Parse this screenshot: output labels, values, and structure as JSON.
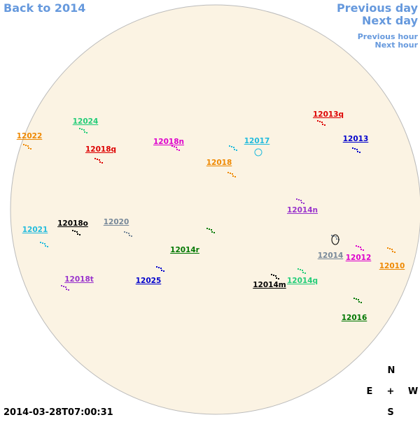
{
  "nav": {
    "back": "Back to 2014",
    "previous_day": "Previous day",
    "next_day": "Next day",
    "previous_hour": "Previous hour",
    "next_hour": "Next hour"
  },
  "regions": [
    {
      "label": "12024",
      "color": "#22cc77"
    },
    {
      "label": "12022",
      "color": "#ee8800"
    },
    {
      "label": "12018q",
      "color": "#dd0000"
    },
    {
      "label": "12018n",
      "color": "#dd00cc"
    },
    {
      "label": "12017",
      "color": "#22bbdd"
    },
    {
      "label": "12018",
      "color": "#ee8800"
    },
    {
      "label": "12013q",
      "color": "#dd0000"
    },
    {
      "label": "12013",
      "color": "#0000cc"
    },
    {
      "label": "12014n",
      "color": "#9933cc"
    },
    {
      "label": "12021",
      "color": "#22bbdd"
    },
    {
      "label": "12018o",
      "color": "#000000"
    },
    {
      "label": "12020",
      "color": "#778899"
    },
    {
      "label": "12014r",
      "color": "#007700"
    },
    {
      "label": "12014",
      "color": "#778899"
    },
    {
      "label": "12012",
      "color": "#dd00cc"
    },
    {
      "label": "12010",
      "color": "#ee8800"
    },
    {
      "label": "12018t",
      "color": "#9933cc"
    },
    {
      "label": "12025",
      "color": "#0000cc"
    },
    {
      "label": "12014m",
      "color": "#000000"
    },
    {
      "label": "12014q",
      "color": "#22cc77"
    },
    {
      "label": "12016",
      "color": "#007700"
    }
  ],
  "compass": {
    "north": "N",
    "east": "E",
    "center": "+",
    "west": "W",
    "south": "S"
  },
  "timestamp": "2014-03-28T07:00:31"
}
